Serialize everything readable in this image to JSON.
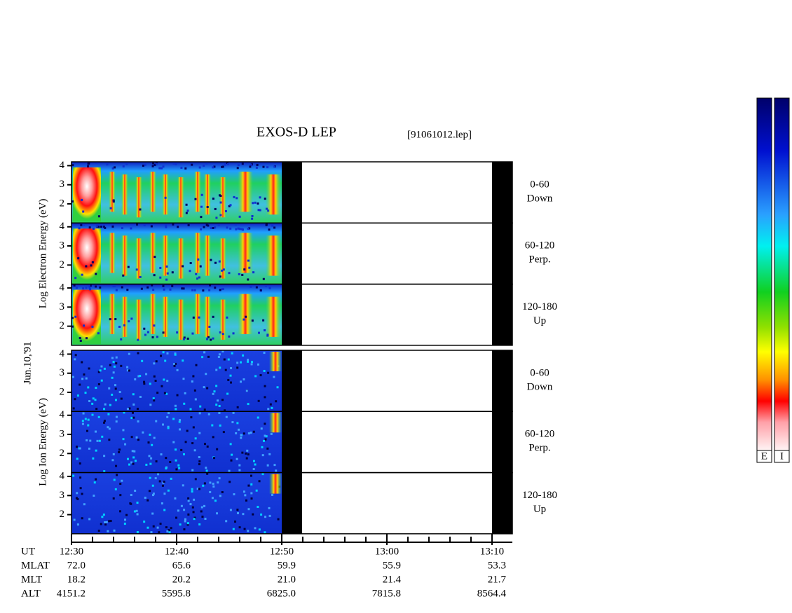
{
  "title": "EXOS-D LEP",
  "file": "[91061012.lep]",
  "date": "Jun.10,'91",
  "energy_ticks": [
    2,
    3,
    4
  ],
  "energy_range": [
    1,
    4.2
  ],
  "groups": [
    {
      "label": "Log  Electron  Energy (eV)",
      "panels": [
        {
          "pitch": "0-60",
          "dir": "Down"
        },
        {
          "pitch": "60-120",
          "dir": "Perp."
        },
        {
          "pitch": "120-180",
          "dir": "Up"
        }
      ]
    },
    {
      "label": "Log  Ion  Energy (eV)",
      "panels": [
        {
          "pitch": "0-60",
          "dir": "Down"
        },
        {
          "pitch": "60-120",
          "dir": "Perp."
        },
        {
          "pitch": "120-180",
          "dir": "Up"
        }
      ]
    }
  ],
  "ephemeris": {
    "rows": [
      [
        "UT",
        "12:30",
        "12:40",
        "12:50",
        "13:00",
        "13:10"
      ],
      [
        "MLAT",
        "72.0",
        "65.6",
        "59.9",
        "55.9",
        "53.3"
      ],
      [
        "MLT",
        "18.2",
        "20.2",
        "21.0",
        "21.4",
        "21.7"
      ],
      [
        "ALT",
        "4151.2",
        "5595.8",
        "6825.0",
        "7815.8",
        "8564.4"
      ]
    ]
  },
  "colorbars": [
    "E",
    "I"
  ]
}
